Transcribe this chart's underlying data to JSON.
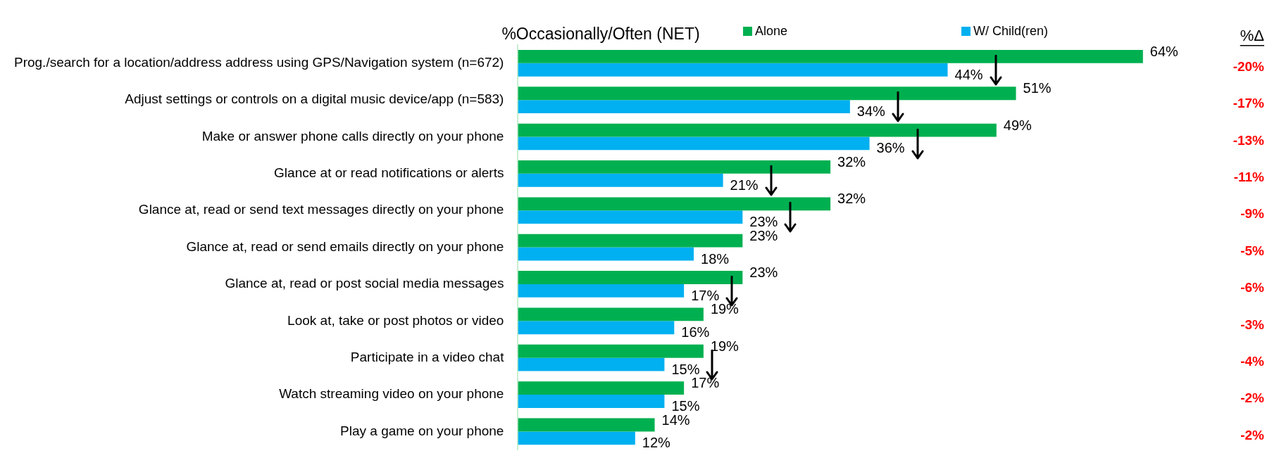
{
  "chart_data": {
    "type": "bar",
    "orientation": "horizontal",
    "title": "%Occasionally/Often (NET)",
    "categories": [
      "Prog./search for a location/address address using GPS/Navigation system (n=672)",
      "Adjust settings or controls on a digital music device/app (n=583)",
      "Make or answer phone calls directly on your phone",
      "Glance at or read notifications or alerts",
      "Glance at, read or send text messages directly on your phone",
      "Glance at, read or send emails directly on your phone",
      "Glance at, read or post social media messages",
      "Look at, take or post photos or video",
      "Participate in a video chat",
      "Watch streaming video on your phone",
      "Play a game on your phone"
    ],
    "series": [
      {
        "name": "Alone",
        "color": "#00b050",
        "values": [
          64,
          51,
          49,
          32,
          32,
          23,
          23,
          19,
          19,
          17,
          14
        ],
        "value_labels": [
          "64%",
          "51%",
          "49%",
          "32%",
          "32%",
          "23%",
          "23%",
          "19%",
          "19%",
          "17%",
          "14%"
        ]
      },
      {
        "name": "W/ Child(ren)",
        "color": "#00b0f0",
        "values": [
          44,
          34,
          36,
          21,
          23,
          18,
          17,
          16,
          15,
          15,
          12
        ],
        "value_labels": [
          "44%",
          "34%",
          "36%",
          "21%",
          "23%",
          "18%",
          "17%",
          "16%",
          "15%",
          "15%",
          "12%"
        ]
      }
    ],
    "annotations": [
      "%Δ",
      "-20%",
      "-17%",
      "-13%",
      "-11%",
      "-9%",
      "-5%",
      "-6%",
      "-3%",
      "-4%",
      "-2%",
      "-2%"
    ],
    "legend": "top",
    "grid": false,
    "tick_labels": "y"
  }
}
